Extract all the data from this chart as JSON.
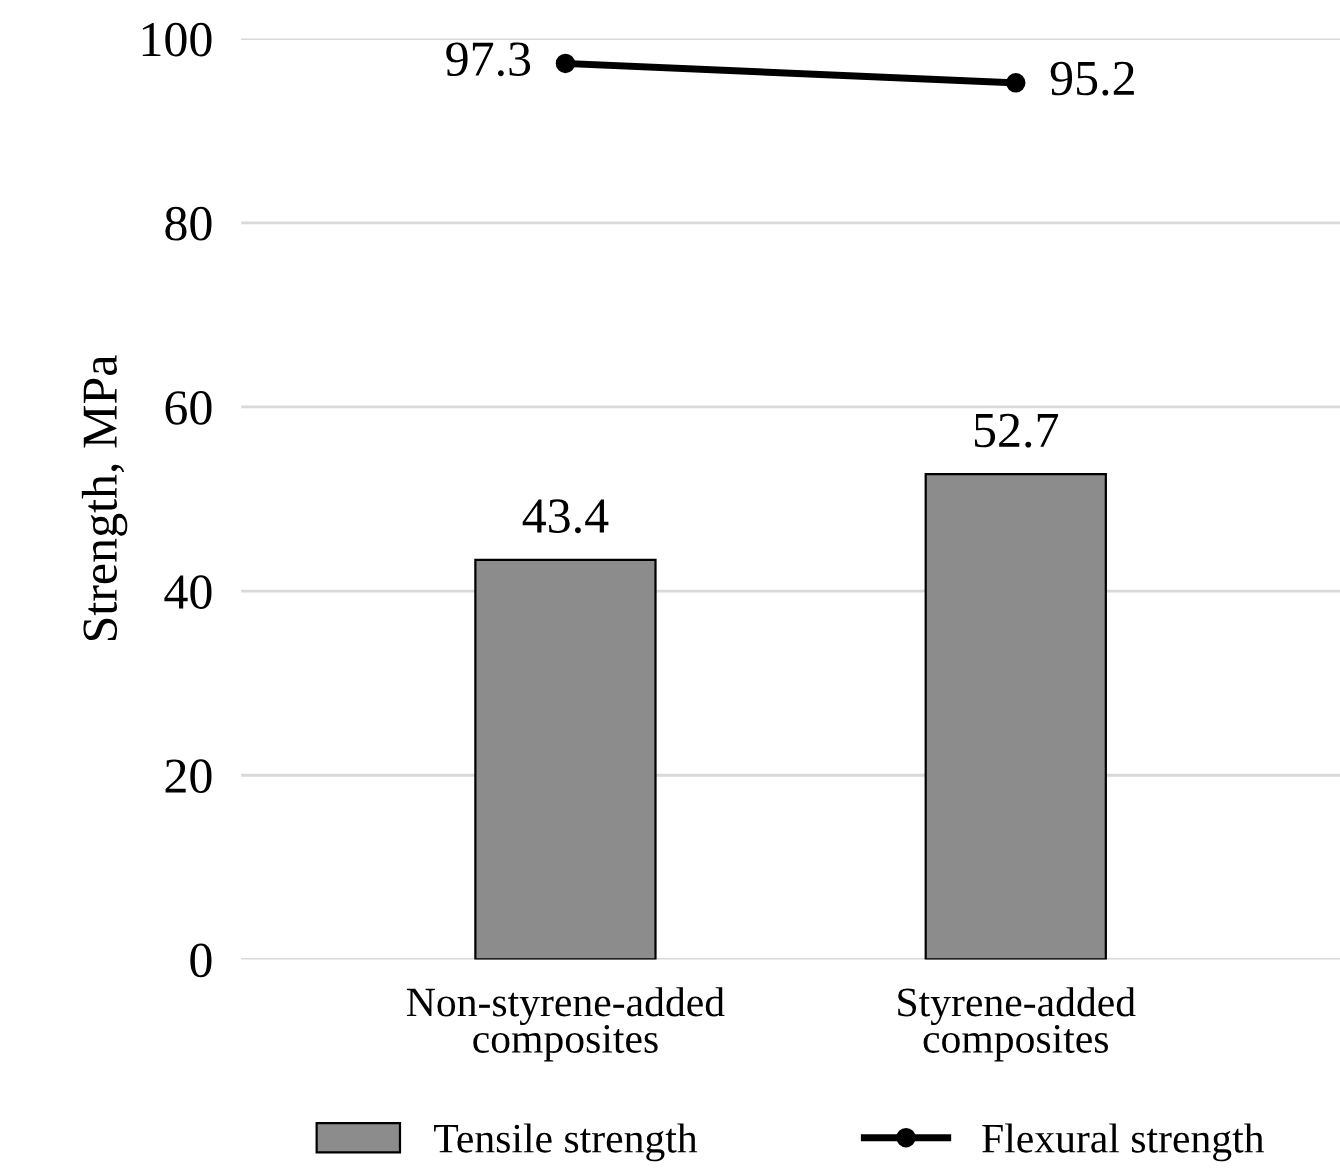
{
  "chart_data": {
    "type": "bar",
    "ylabel": "Strength, MPa",
    "categories": [
      "Non-styrene-added\ncomposites",
      "Styrene-added\ncomposites"
    ],
    "series": [
      {
        "name": "Tensile strength",
        "color": "#8c8c8c",
        "values": [
          43.4,
          52.7
        ]
      },
      {
        "name": "Flexural strength",
        "type": "line",
        "color": "#000000",
        "values": [
          97.3,
          95.2
        ]
      }
    ],
    "ylim": [
      0,
      100
    ],
    "yticks": [
      0,
      20,
      40,
      60,
      80,
      100
    ],
    "grid": "y",
    "legend": "bottom",
    "marker": "circle",
    "line_style": "solid",
    "data_labels": true
  }
}
